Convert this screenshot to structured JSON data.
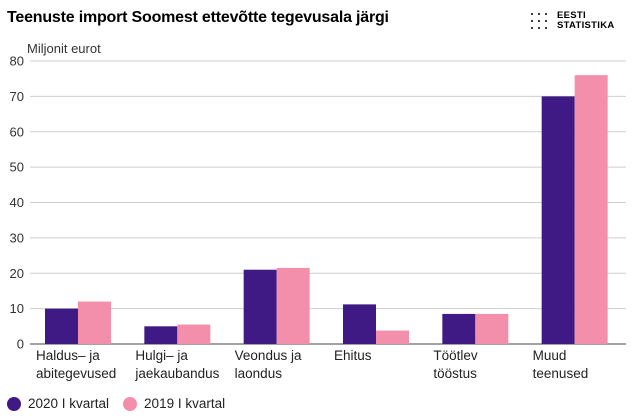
{
  "title": "Teenuste import Soomest ettevõtte tegevusala järgi",
  "logo": {
    "line1": "EESTI",
    "line2": "STATISTIKA"
  },
  "chart_data": {
    "type": "bar",
    "title": "Teenuste import Soomest ettevõtte tegevusala järgi",
    "ylabel": "Miljonit eurot",
    "xlabel": "",
    "ylim": [
      0,
      80
    ],
    "yticks": [
      0,
      10,
      20,
      30,
      40,
      50,
      60,
      70,
      80
    ],
    "grid": true,
    "legend_position": "bottom-left",
    "categories": [
      [
        "Haldus– ja",
        "abitegevused"
      ],
      [
        "Hulgi– ja",
        "jaekaubandus"
      ],
      [
        "Veondus ja",
        "laondus"
      ],
      [
        "Ehitus"
      ],
      [
        "Töötlev",
        "tööstus"
      ],
      [
        "Muud",
        "teenused"
      ]
    ],
    "series": [
      {
        "name": "2020 I kvartal",
        "color": "#3f1a85",
        "values": [
          10,
          5,
          21,
          11.2,
          8.5,
          70
        ]
      },
      {
        "name": "2019 I kvartal",
        "color": "#f48fab",
        "values": [
          12,
          5.5,
          21.5,
          3.8,
          8.5,
          76
        ]
      }
    ]
  }
}
